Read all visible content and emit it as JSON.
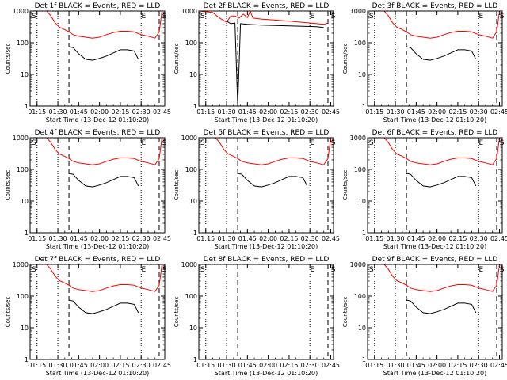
{
  "figure": {
    "ylabel": "Counts/sec",
    "xlabel": "Start Time (13-Dec-12 01:10:20)",
    "y_ticks": [
      "1000",
      "100",
      "10",
      "1"
    ],
    "x_ticks": [
      "01:15",
      "01:30",
      "01:45",
      "02:00",
      "02:15",
      "02:30",
      "02:45"
    ],
    "colors": {
      "events": "#000000",
      "lld": "#ff0000",
      "axes": "#000000"
    }
  },
  "chart_data": [
    {
      "type": "line",
      "title": "Det 1f BLACK = Events, RED = LLD",
      "ylog": true,
      "ylim": [
        1,
        1000
      ],
      "xlabel": "Start Time (13-Dec-12 01:10:20)",
      "ylabel": "Counts/sec",
      "markers": {
        "dotted": [
          "01:15",
          "01:30",
          "02:30"
        ],
        "dashed": [
          "01:38",
          "02:43"
        ]
      },
      "region_labels": [
        {
          "at": "01:10",
          "text": "S"
        },
        {
          "at": "02:29",
          "text": "E"
        },
        {
          "at": "02:44",
          "text": "S"
        }
      ],
      "series": [
        {
          "color": "red",
          "x": [
            "01:22",
            "01:25",
            "01:28",
            "01:31",
            "01:35",
            "01:38",
            "01:41",
            "01:45",
            "01:50",
            "01:55",
            "02:00",
            "02:05",
            "02:10",
            "02:15",
            "02:20",
            "02:25",
            "02:30",
            "02:35",
            "02:40",
            "02:43",
            "02:45"
          ],
          "y": [
            1000,
            700,
            430,
            310,
            260,
            220,
            180,
            160,
            150,
            140,
            150,
            180,
            210,
            230,
            230,
            220,
            180,
            160,
            140,
            220,
            1000
          ]
        },
        {
          "color": "black",
          "x": [
            "01:38",
            "01:41",
            "01:45",
            "01:50",
            "01:55",
            "02:00",
            "02:05",
            "02:10",
            "02:15",
            "02:20",
            "02:25",
            "02:28"
          ],
          "y": [
            75,
            70,
            45,
            30,
            28,
            32,
            38,
            48,
            60,
            60,
            55,
            30
          ]
        }
      ]
    },
    {
      "type": "line",
      "title": "Det 2f BLACK = Events, RED = LLD",
      "ylog": true,
      "ylim": [
        1,
        1000
      ],
      "xlabel": "Start Time (13-Dec-12 01:10:20)",
      "ylabel": "Counts/sec",
      "markers": {
        "dotted": [
          "01:15",
          "01:30",
          "02:30"
        ],
        "dashed": [
          "01:38",
          "02:43"
        ]
      },
      "region_labels": [
        {
          "at": "01:10",
          "text": "S"
        },
        {
          "at": "02:29",
          "text": "E"
        },
        {
          "at": "02:44",
          "text": "S"
        }
      ],
      "series": [
        {
          "color": "red",
          "x": [
            "01:10",
            "01:20",
            "01:25",
            "01:30",
            "01:33",
            "01:36",
            "01:39",
            "01:42",
            "01:45",
            "01:47",
            "01:49",
            "01:55",
            "02:05",
            "02:15",
            "02:25",
            "02:35",
            "02:40",
            "02:43"
          ],
          "y": [
            1000,
            900,
            600,
            450,
            700,
            700,
            600,
            800,
            620,
            1000,
            600,
            560,
            520,
            480,
            440,
            400,
            380,
            420
          ]
        },
        {
          "color": "black",
          "x": [
            "01:30",
            "01:33",
            "01:36",
            "01:38",
            "01:40",
            "01:45",
            "01:55",
            "02:05",
            "02:15",
            "02:25",
            "02:35",
            "02:40"
          ],
          "y": [
            480,
            400,
            420,
            1,
            400,
            380,
            360,
            350,
            340,
            330,
            320,
            300
          ]
        }
      ]
    },
    {
      "type": "line",
      "title": "Det 3f BLACK = Events, RED = LLD",
      "ylog": true,
      "ylim": [
        1,
        1000
      ],
      "xlabel": "Start Time (13-Dec-12 01:10:20)",
      "ylabel": "Counts/sec",
      "markers": {
        "dotted": [
          "01:15",
          "01:30",
          "02:30"
        ],
        "dashed": [
          "01:38",
          "02:43"
        ]
      },
      "region_labels": [
        {
          "at": "01:10",
          "text": "S"
        },
        {
          "at": "02:29",
          "text": "E"
        },
        {
          "at": "02:44",
          "text": "S"
        }
      ],
      "series": [
        {
          "color": "red",
          "x": [
            "01:22",
            "01:25",
            "01:28",
            "01:31",
            "01:35",
            "01:38",
            "01:41",
            "01:45",
            "01:50",
            "01:55",
            "02:00",
            "02:05",
            "02:10",
            "02:15",
            "02:20",
            "02:25",
            "02:30",
            "02:35",
            "02:40",
            "02:43",
            "02:45"
          ],
          "y": [
            1000,
            700,
            430,
            310,
            260,
            220,
            180,
            160,
            150,
            140,
            150,
            180,
            210,
            230,
            230,
            220,
            180,
            160,
            140,
            220,
            1000
          ]
        },
        {
          "color": "black",
          "x": [
            "01:38",
            "01:41",
            "01:45",
            "01:50",
            "01:55",
            "02:00",
            "02:05",
            "02:10",
            "02:15",
            "02:20",
            "02:25",
            "02:28"
          ],
          "y": [
            75,
            70,
            45,
            30,
            28,
            32,
            38,
            48,
            60,
            60,
            55,
            30
          ]
        }
      ]
    },
    {
      "type": "line",
      "title": "Det 4f BLACK = Events, RED = LLD",
      "ylog": true,
      "ylim": [
        1,
        1000
      ],
      "xlabel": "Start Time (13-Dec-12 01:10:20)",
      "ylabel": "Counts/sec",
      "markers": {
        "dotted": [
          "01:15",
          "01:30",
          "02:30"
        ],
        "dashed": [
          "01:38",
          "02:43"
        ]
      },
      "region_labels": [
        {
          "at": "01:10",
          "text": "S"
        },
        {
          "at": "02:29",
          "text": "E"
        },
        {
          "at": "02:44",
          "text": "S"
        }
      ],
      "series": [
        {
          "color": "red",
          "x": [
            "01:22",
            "01:25",
            "01:28",
            "01:31",
            "01:35",
            "01:38",
            "01:41",
            "01:45",
            "01:50",
            "01:55",
            "02:00",
            "02:05",
            "02:10",
            "02:15",
            "02:20",
            "02:25",
            "02:30",
            "02:35",
            "02:40",
            "02:43",
            "02:45"
          ],
          "y": [
            1000,
            700,
            430,
            310,
            260,
            220,
            180,
            160,
            150,
            140,
            150,
            180,
            210,
            230,
            230,
            220,
            180,
            160,
            140,
            220,
            1000
          ]
        },
        {
          "color": "black",
          "x": [
            "01:38",
            "01:41",
            "01:45",
            "01:50",
            "01:55",
            "02:00",
            "02:05",
            "02:10",
            "02:15",
            "02:20",
            "02:25",
            "02:28"
          ],
          "y": [
            75,
            70,
            45,
            30,
            28,
            32,
            38,
            48,
            60,
            60,
            55,
            30
          ]
        }
      ]
    },
    {
      "type": "line",
      "title": "Det 5f BLACK = Events, RED = LLD",
      "ylog": true,
      "ylim": [
        1,
        1000
      ],
      "xlabel": "Start Time (13-Dec-12 01:10:20)",
      "ylabel": "Counts/sec",
      "markers": {
        "dotted": [
          "01:15",
          "01:30",
          "02:30"
        ],
        "dashed": [
          "01:38",
          "02:43"
        ]
      },
      "region_labels": [
        {
          "at": "01:10",
          "text": "S"
        },
        {
          "at": "02:29",
          "text": "E"
        },
        {
          "at": "02:44",
          "text": "S"
        }
      ],
      "series": [
        {
          "color": "red",
          "x": [
            "01:22",
            "01:25",
            "01:28",
            "01:31",
            "01:35",
            "01:38",
            "01:41",
            "01:45",
            "01:50",
            "01:55",
            "02:00",
            "02:05",
            "02:10",
            "02:15",
            "02:20",
            "02:25",
            "02:30",
            "02:35",
            "02:40",
            "02:43",
            "02:45"
          ],
          "y": [
            1000,
            700,
            430,
            310,
            260,
            220,
            180,
            160,
            150,
            140,
            150,
            180,
            210,
            230,
            230,
            220,
            180,
            160,
            140,
            220,
            1000
          ]
        },
        {
          "color": "black",
          "x": [
            "01:38",
            "01:41",
            "01:45",
            "01:50",
            "01:55",
            "02:00",
            "02:05",
            "02:10",
            "02:15",
            "02:20",
            "02:25",
            "02:28"
          ],
          "y": [
            75,
            70,
            45,
            30,
            28,
            32,
            38,
            48,
            60,
            60,
            55,
            30
          ]
        }
      ]
    },
    {
      "type": "line",
      "title": "Det 6f BLACK = Events, RED = LLD",
      "ylog": true,
      "ylim": [
        1,
        1000
      ],
      "xlabel": "Start Time (13-Dec-12 01:10:20)",
      "ylabel": "Counts/sec",
      "markers": {
        "dotted": [
          "01:15",
          "01:30",
          "02:30"
        ],
        "dashed": [
          "01:38",
          "02:43"
        ]
      },
      "region_labels": [
        {
          "at": "01:10",
          "text": "S"
        },
        {
          "at": "02:29",
          "text": "E"
        },
        {
          "at": "02:44",
          "text": "S"
        }
      ],
      "series": [
        {
          "color": "red",
          "x": [
            "01:22",
            "01:25",
            "01:28",
            "01:31",
            "01:35",
            "01:38",
            "01:41",
            "01:45",
            "01:50",
            "01:55",
            "02:00",
            "02:05",
            "02:10",
            "02:15",
            "02:20",
            "02:25",
            "02:30",
            "02:35",
            "02:40",
            "02:43",
            "02:45"
          ],
          "y": [
            1000,
            700,
            430,
            310,
            260,
            220,
            180,
            160,
            150,
            140,
            150,
            180,
            210,
            230,
            230,
            220,
            180,
            160,
            140,
            220,
            1000
          ]
        },
        {
          "color": "black",
          "x": [
            "01:38",
            "01:41",
            "01:45",
            "01:50",
            "01:55",
            "02:00",
            "02:05",
            "02:10",
            "02:15",
            "02:20",
            "02:25",
            "02:28"
          ],
          "y": [
            75,
            70,
            45,
            30,
            28,
            32,
            38,
            48,
            60,
            60,
            55,
            30
          ]
        }
      ]
    },
    {
      "type": "line",
      "title": "Det 7f BLACK = Events, RED = LLD",
      "ylog": true,
      "ylim": [
        1,
        1000
      ],
      "xlabel": "Start Time (13-Dec-12 01:10:20)",
      "ylabel": "Counts/sec",
      "markers": {
        "dotted": [
          "01:15",
          "01:30",
          "02:30"
        ],
        "dashed": [
          "01:38",
          "02:43"
        ]
      },
      "region_labels": [
        {
          "at": "01:10",
          "text": "S"
        },
        {
          "at": "02:29",
          "text": "E"
        },
        {
          "at": "02:44",
          "text": "S"
        }
      ],
      "series": [
        {
          "color": "red",
          "x": [
            "01:22",
            "01:25",
            "01:28",
            "01:31",
            "01:35",
            "01:38",
            "01:41",
            "01:45",
            "01:50",
            "01:55",
            "02:00",
            "02:05",
            "02:10",
            "02:15",
            "02:20",
            "02:25",
            "02:30",
            "02:35",
            "02:40",
            "02:43",
            "02:45"
          ],
          "y": [
            1000,
            700,
            430,
            310,
            260,
            220,
            180,
            160,
            150,
            140,
            150,
            180,
            210,
            230,
            230,
            220,
            180,
            160,
            140,
            220,
            1000
          ]
        },
        {
          "color": "black",
          "x": [
            "01:38",
            "01:41",
            "01:45",
            "01:50",
            "01:55",
            "02:00",
            "02:05",
            "02:10",
            "02:15",
            "02:20",
            "02:25",
            "02:28"
          ],
          "y": [
            75,
            70,
            45,
            30,
            28,
            32,
            38,
            48,
            60,
            60,
            55,
            30
          ]
        }
      ]
    },
    {
      "type": "line",
      "title": "Det 8f BLACK = Events, RED = LLD",
      "ylog": true,
      "ylim": [
        1,
        1000
      ],
      "xlabel": "Start Time (13-Dec-12 01:10:20)",
      "ylabel": "Counts/sec",
      "markers": {
        "dotted": [
          "01:15",
          "01:30",
          "02:30"
        ],
        "dashed": [
          "01:38",
          "02:43"
        ]
      },
      "region_labels": [
        {
          "at": "01:10",
          "text": "S"
        },
        {
          "at": "02:29",
          "text": "E"
        },
        {
          "at": "02:44",
          "text": "S"
        }
      ],
      "series": []
    },
    {
      "type": "line",
      "title": "Det 9f BLACK = Events, RED = LLD",
      "ylog": true,
      "ylim": [
        1,
        1000
      ],
      "xlabel": "Start Time (13-Dec-12 01:10:20)",
      "ylabel": "Counts/sec",
      "markers": {
        "dotted": [
          "01:15",
          "01:30",
          "02:30"
        ],
        "dashed": [
          "01:38",
          "02:43"
        ]
      },
      "region_labels": [
        {
          "at": "01:10",
          "text": "S"
        },
        {
          "at": "02:29",
          "text": "E"
        },
        {
          "at": "02:44",
          "text": "S"
        }
      ],
      "series": [
        {
          "color": "red",
          "x": [
            "01:22",
            "01:25",
            "01:28",
            "01:31",
            "01:35",
            "01:38",
            "01:41",
            "01:45",
            "01:50",
            "01:55",
            "02:00",
            "02:05",
            "02:10",
            "02:15",
            "02:20",
            "02:25",
            "02:30",
            "02:35",
            "02:40",
            "02:43",
            "02:45"
          ],
          "y": [
            1000,
            700,
            430,
            310,
            260,
            220,
            180,
            160,
            150,
            140,
            150,
            180,
            210,
            230,
            230,
            220,
            180,
            160,
            140,
            220,
            1000
          ]
        },
        {
          "color": "black",
          "x": [
            "01:38",
            "01:41",
            "01:45",
            "01:50",
            "01:55",
            "02:00",
            "02:05",
            "02:10",
            "02:15",
            "02:20",
            "02:25",
            "02:28"
          ],
          "y": [
            75,
            70,
            45,
            30,
            28,
            32,
            38,
            48,
            60,
            60,
            55,
            30
          ]
        }
      ]
    }
  ]
}
